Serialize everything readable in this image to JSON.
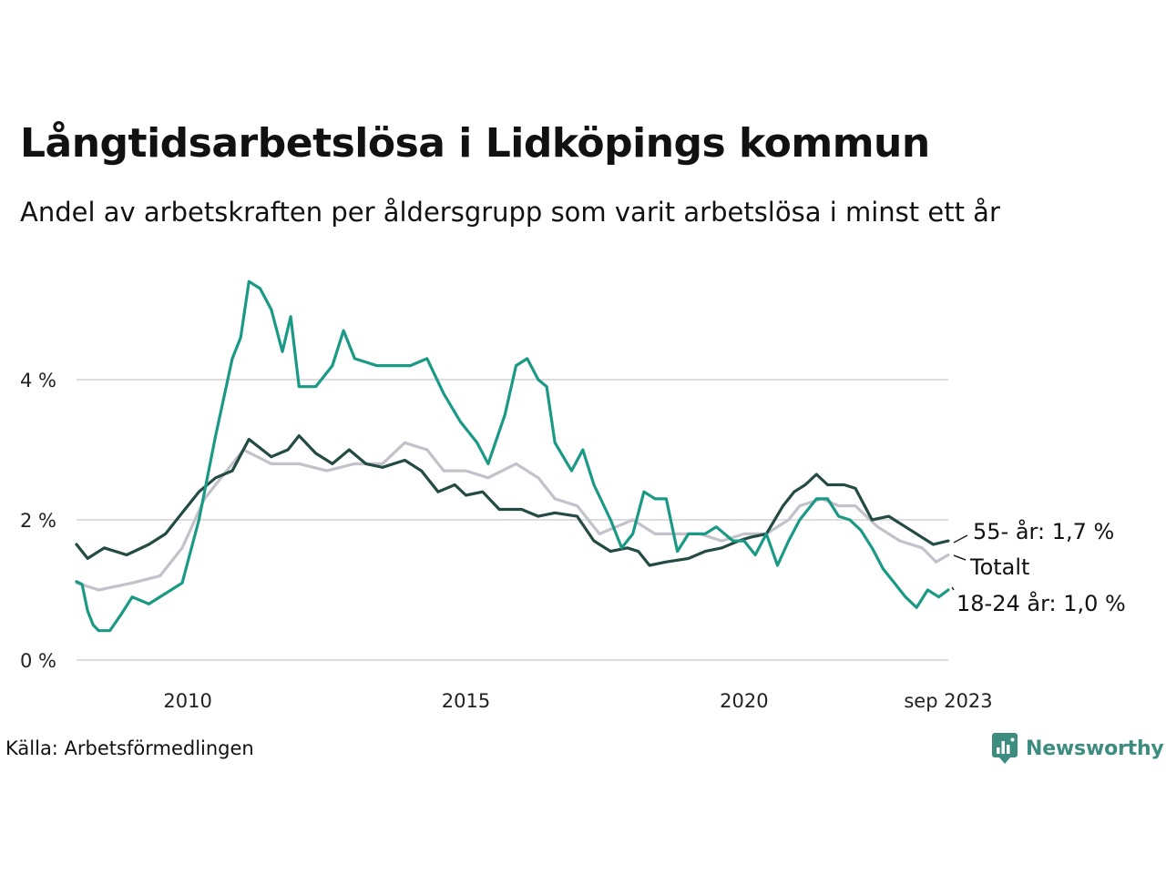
{
  "title": "Långtidsarbetslösa i Lidköpings kommun",
  "subtitle": "Andel av arbetskraften per åldersgrupp som varit arbetslösa i minst ett år",
  "source": "Källa: Arbetsförmedlingen",
  "brand": "Newsworthy",
  "colors": {
    "youth": "#1a9985",
    "older": "#244a44",
    "total": "#c3c1c9",
    "grid": "#dddddd",
    "brand": "#3c8d7f"
  },
  "chart_data": {
    "type": "line",
    "title": "Långtidsarbetslösa i Lidköpings kommun",
    "subtitle": "Andel av arbetskraften per åldersgrupp som varit arbetslösa i minst ett år",
    "xlabel": "",
    "ylabel": "",
    "x_ticks": [
      {
        "x": 2010,
        "label": "2010"
      },
      {
        "x": 2015,
        "label": "2015"
      },
      {
        "x": 2020,
        "label": "2020"
      },
      {
        "x": 2023.67,
        "label": "sep 2023"
      }
    ],
    "y_ticks": [
      {
        "y": 0,
        "label": "0 %"
      },
      {
        "y": 2,
        "label": "2 %"
      },
      {
        "y": 4,
        "label": "4 %"
      }
    ],
    "xlim": [
      2008.0,
      2023.67
    ],
    "ylim": [
      0,
      5.6
    ],
    "grid": true,
    "series": [
      {
        "name": "Totalt",
        "label": "Totalt",
        "color_key": "total",
        "points": [
          [
            2008.0,
            1.1
          ],
          [
            2008.4,
            1.0
          ],
          [
            2009.0,
            1.1
          ],
          [
            2009.5,
            1.2
          ],
          [
            2009.9,
            1.6
          ],
          [
            2010.3,
            2.3
          ],
          [
            2010.6,
            2.6
          ],
          [
            2011.0,
            3.0
          ],
          [
            2011.5,
            2.8
          ],
          [
            2012.0,
            2.8
          ],
          [
            2012.5,
            2.7
          ],
          [
            2013.0,
            2.8
          ],
          [
            2013.5,
            2.8
          ],
          [
            2013.9,
            3.1
          ],
          [
            2014.3,
            3.0
          ],
          [
            2014.6,
            2.7
          ],
          [
            2015.0,
            2.7
          ],
          [
            2015.4,
            2.6
          ],
          [
            2015.9,
            2.8
          ],
          [
            2016.3,
            2.6
          ],
          [
            2016.6,
            2.3
          ],
          [
            2017.0,
            2.2
          ],
          [
            2017.4,
            1.8
          ],
          [
            2017.7,
            1.9
          ],
          [
            2018.0,
            2.0
          ],
          [
            2018.4,
            1.8
          ],
          [
            2018.8,
            1.8
          ],
          [
            2019.2,
            1.8
          ],
          [
            2019.6,
            1.7
          ],
          [
            2020.0,
            1.8
          ],
          [
            2020.4,
            1.8
          ],
          [
            2020.8,
            2.0
          ],
          [
            2021.0,
            2.2
          ],
          [
            2021.4,
            2.3
          ],
          [
            2021.7,
            2.2
          ],
          [
            2022.0,
            2.2
          ],
          [
            2022.4,
            1.9
          ],
          [
            2022.8,
            1.7
          ],
          [
            2023.2,
            1.6
          ],
          [
            2023.45,
            1.4
          ],
          [
            2023.67,
            1.5
          ]
        ],
        "end_label": "Totalt"
      },
      {
        "name": "55- år",
        "label": "55- år: 1,7 %",
        "color_key": "older",
        "points": [
          [
            2008.0,
            1.65
          ],
          [
            2008.2,
            1.45
          ],
          [
            2008.5,
            1.6
          ],
          [
            2008.9,
            1.5
          ],
          [
            2009.3,
            1.65
          ],
          [
            2009.6,
            1.8
          ],
          [
            2009.9,
            2.1
          ],
          [
            2010.2,
            2.4
          ],
          [
            2010.5,
            2.6
          ],
          [
            2010.8,
            2.7
          ],
          [
            2011.1,
            3.15
          ],
          [
            2011.5,
            2.9
          ],
          [
            2011.8,
            3.0
          ],
          [
            2012.0,
            3.2
          ],
          [
            2012.3,
            2.95
          ],
          [
            2012.6,
            2.8
          ],
          [
            2012.9,
            3.0
          ],
          [
            2013.2,
            2.8
          ],
          [
            2013.5,
            2.75
          ],
          [
            2013.9,
            2.85
          ],
          [
            2014.2,
            2.7
          ],
          [
            2014.5,
            2.4
          ],
          [
            2014.8,
            2.5
          ],
          [
            2015.0,
            2.35
          ],
          [
            2015.3,
            2.4
          ],
          [
            2015.6,
            2.15
          ],
          [
            2016.0,
            2.15
          ],
          [
            2016.3,
            2.05
          ],
          [
            2016.6,
            2.1
          ],
          [
            2017.0,
            2.05
          ],
          [
            2017.3,
            1.7
          ],
          [
            2017.6,
            1.55
          ],
          [
            2017.9,
            1.6
          ],
          [
            2018.1,
            1.55
          ],
          [
            2018.3,
            1.35
          ],
          [
            2018.6,
            1.4
          ],
          [
            2019.0,
            1.45
          ],
          [
            2019.3,
            1.55
          ],
          [
            2019.6,
            1.6
          ],
          [
            2019.9,
            1.7
          ],
          [
            2020.1,
            1.75
          ],
          [
            2020.4,
            1.8
          ],
          [
            2020.7,
            2.2
          ],
          [
            2020.9,
            2.4
          ],
          [
            2021.1,
            2.5
          ],
          [
            2021.3,
            2.65
          ],
          [
            2021.5,
            2.5
          ],
          [
            2021.8,
            2.5
          ],
          [
            2022.0,
            2.45
          ],
          [
            2022.3,
            2.0
          ],
          [
            2022.6,
            2.05
          ],
          [
            2022.9,
            1.9
          ],
          [
            2023.2,
            1.75
          ],
          [
            2023.4,
            1.65
          ],
          [
            2023.67,
            1.7
          ]
        ],
        "end_label": "55- år: 1,7 %"
      },
      {
        "name": "18-24 år",
        "label": "18-24 år: 1,0 %",
        "color_key": "youth",
        "points": [
          [
            2008.0,
            1.12
          ],
          [
            2008.1,
            1.08
          ],
          [
            2008.2,
            0.7
          ],
          [
            2008.3,
            0.5
          ],
          [
            2008.4,
            0.42
          ],
          [
            2008.6,
            0.42
          ],
          [
            2008.8,
            0.65
          ],
          [
            2009.0,
            0.9
          ],
          [
            2009.3,
            0.8
          ],
          [
            2009.6,
            0.95
          ],
          [
            2009.9,
            1.1
          ],
          [
            2010.2,
            2.0
          ],
          [
            2010.5,
            3.2
          ],
          [
            2010.8,
            4.3
          ],
          [
            2010.95,
            4.6
          ],
          [
            2011.1,
            5.4
          ],
          [
            2011.3,
            5.3
          ],
          [
            2011.5,
            5.0
          ],
          [
            2011.7,
            4.4
          ],
          [
            2011.85,
            4.9
          ],
          [
            2012.0,
            3.9
          ],
          [
            2012.3,
            3.9
          ],
          [
            2012.6,
            4.2
          ],
          [
            2012.8,
            4.7
          ],
          [
            2013.0,
            4.3
          ],
          [
            2013.4,
            4.2
          ],
          [
            2013.7,
            4.2
          ],
          [
            2014.0,
            4.2
          ],
          [
            2014.3,
            4.3
          ],
          [
            2014.6,
            3.8
          ],
          [
            2014.9,
            3.4
          ],
          [
            2015.2,
            3.1
          ],
          [
            2015.4,
            2.8
          ],
          [
            2015.7,
            3.5
          ],
          [
            2015.9,
            4.2
          ],
          [
            2016.1,
            4.3
          ],
          [
            2016.3,
            4.0
          ],
          [
            2016.45,
            3.9
          ],
          [
            2016.6,
            3.1
          ],
          [
            2016.9,
            2.7
          ],
          [
            2017.1,
            3.0
          ],
          [
            2017.3,
            2.5
          ],
          [
            2017.6,
            2.0
          ],
          [
            2017.8,
            1.6
          ],
          [
            2018.0,
            1.8
          ],
          [
            2018.2,
            2.4
          ],
          [
            2018.4,
            2.3
          ],
          [
            2018.6,
            2.3
          ],
          [
            2018.8,
            1.55
          ],
          [
            2019.0,
            1.8
          ],
          [
            2019.3,
            1.8
          ],
          [
            2019.5,
            1.9
          ],
          [
            2019.8,
            1.7
          ],
          [
            2020.0,
            1.7
          ],
          [
            2020.2,
            1.5
          ],
          [
            2020.4,
            1.8
          ],
          [
            2020.6,
            1.35
          ],
          [
            2020.8,
            1.7
          ],
          [
            2021.0,
            2.0
          ],
          [
            2021.3,
            2.3
          ],
          [
            2021.5,
            2.3
          ],
          [
            2021.7,
            2.05
          ],
          [
            2021.9,
            2.0
          ],
          [
            2022.1,
            1.85
          ],
          [
            2022.3,
            1.6
          ],
          [
            2022.5,
            1.3
          ],
          [
            2022.7,
            1.1
          ],
          [
            2022.9,
            0.9
          ],
          [
            2023.1,
            0.75
          ],
          [
            2023.3,
            1.0
          ],
          [
            2023.5,
            0.9
          ],
          [
            2023.67,
            1.0
          ]
        ],
        "end_label": "18-24 år: 1,0 %"
      }
    ]
  }
}
